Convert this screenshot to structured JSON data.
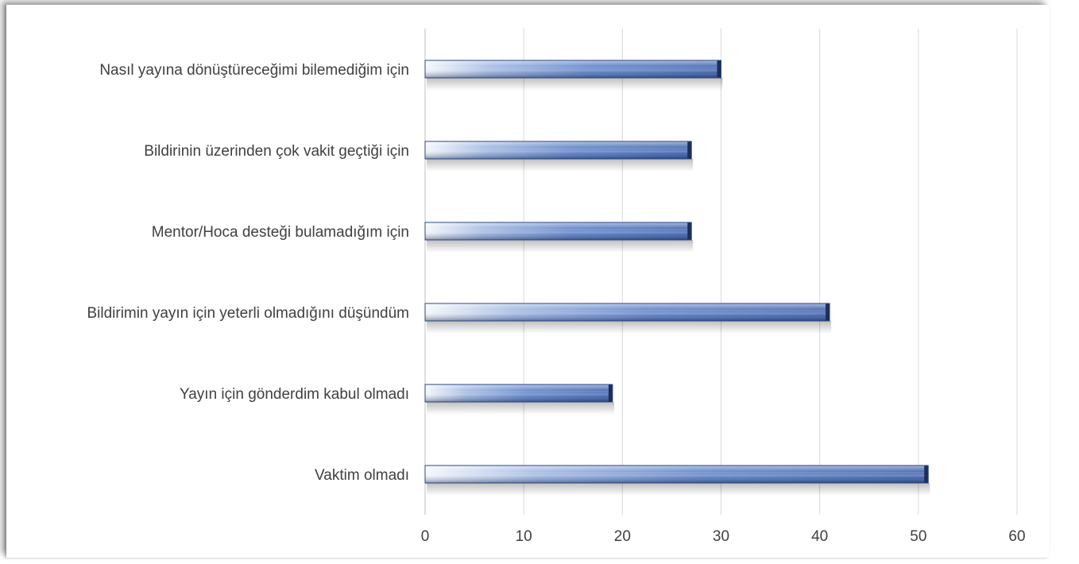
{
  "chart_data": {
    "type": "bar",
    "orientation": "horizontal",
    "title": "",
    "xlabel": "",
    "ylabel": "",
    "categories": [
      "Nasıl yayına dönüştüreceğimi bilemediğim için",
      "Bildirinin üzerinden çok vakit geçtiği için",
      "Mentor/Hoca desteği bulamadığım için",
      "Bildirimin yayın için yeterli olmadığını düşündüm",
      "Yayın için gönderdim kabul olmadı",
      "Vaktim olmadı"
    ],
    "values": [
      30,
      27,
      27,
      41,
      19,
      51
    ],
    "xlim": [
      0,
      60
    ],
    "xticks": [
      "0",
      "10",
      "20",
      "30",
      "40",
      "50",
      "60"
    ],
    "grid": true,
    "legend": "none",
    "colors": {
      "bar_light": "#f4f7fc",
      "bar_mid": "#7f9ed8",
      "bar_dark": "#2d4f95",
      "bar_edge": "#1b2f5c",
      "grid": "#d9d9d9",
      "text": "#404040"
    }
  }
}
